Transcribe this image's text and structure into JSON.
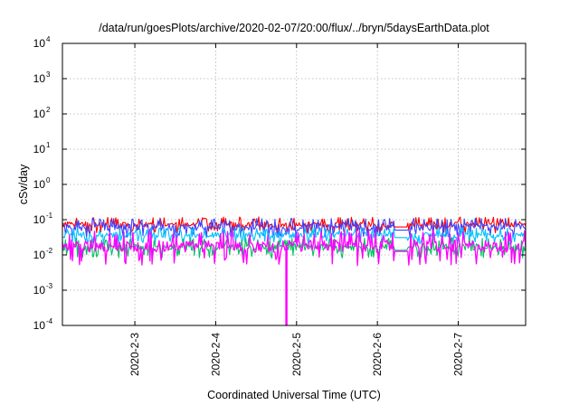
{
  "chart_data": {
    "type": "line",
    "title": "/data/run/goesPlots/archive/2020-02-07/20:00/flux/../bryn/5daysEarthData.plot",
    "xlabel": "Coordinated Universal Time (UTC)",
    "ylabel": "cSv/day",
    "y_scale": "log",
    "ylim": [
      0.0001,
      10000
    ],
    "y_ticks": [
      {
        "base": "10",
        "exp": "-4",
        "value": 0.0001
      },
      {
        "base": "10",
        "exp": "-3",
        "value": 0.001
      },
      {
        "base": "10",
        "exp": "-2",
        "value": 0.01
      },
      {
        "base": "10",
        "exp": "-1",
        "value": 0.1
      },
      {
        "base": "10",
        "exp": "0",
        "value": 1
      },
      {
        "base": "10",
        "exp": "1",
        "value": 10
      },
      {
        "base": "10",
        "exp": "2",
        "value": 100
      },
      {
        "base": "10",
        "exp": "3",
        "value": 1000
      },
      {
        "base": "10",
        "exp": "4",
        "value": 10000
      }
    ],
    "xlim": [
      "2020-02-02 02:30",
      "2020-02-07 20:00"
    ],
    "x_ticks": [
      "2020-2-3",
      "2020-2-4",
      "2020-2-5",
      "2020-2-6",
      "2020-2-7"
    ],
    "grid": true,
    "series": [
      {
        "color": "#ff0000",
        "values_range": [
          0.04,
          0.12
        ]
      },
      {
        "color": "#4040ff",
        "values_range": [
          0.03,
          0.11
        ]
      },
      {
        "color": "#00bfff",
        "values_range": [
          0.02,
          0.06
        ]
      },
      {
        "color": "#00c060",
        "values_range": [
          0.008,
          0.03
        ]
      },
      {
        "color": "#ff00ff",
        "values_range": [
          0.005,
          0.05
        ]
      }
    ],
    "annotations": [
      {
        "x": "2020-02-04 21:00",
        "series_color": "#ff00ff",
        "note": "drop",
        "y": 0.0001
      }
    ]
  }
}
